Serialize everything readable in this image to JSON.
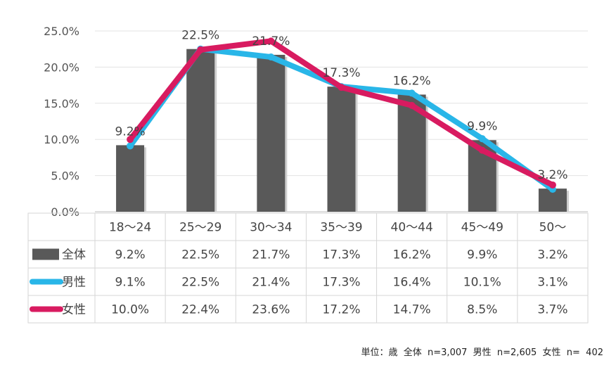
{
  "chart_data": {
    "type": "bar+line",
    "categories": [
      "18～24",
      "25～29",
      "30～34",
      "35～39",
      "40～44",
      "45～49",
      "50～"
    ],
    "y_ticks": [
      "0.0%",
      "5.0%",
      "10.0%",
      "15.0%",
      "20.0%",
      "25.0%"
    ],
    "ylim": [
      0,
      25
    ],
    "series": [
      {
        "name": "全体",
        "kind": "bar",
        "color": "#595959",
        "values": [
          9.2,
          22.5,
          21.7,
          17.3,
          16.2,
          9.9,
          3.2
        ],
        "labels": [
          "9.2%",
          "22.5%",
          "21.7%",
          "17.3%",
          "16.2%",
          "9.9%",
          "3.2%"
        ]
      },
      {
        "name": "男性",
        "kind": "line",
        "color": "#29b6e8",
        "values": [
          9.1,
          22.5,
          21.4,
          17.3,
          16.4,
          10.1,
          3.1
        ],
        "labels": [
          "9.1%",
          "22.5%",
          "21.4%",
          "17.3%",
          "16.4%",
          "10.1%",
          "3.1%"
        ]
      },
      {
        "name": "女性",
        "kind": "line",
        "color": "#d81b60",
        "values": [
          10.0,
          22.4,
          23.6,
          17.2,
          14.7,
          8.5,
          3.7
        ],
        "labels": [
          "10.0%",
          "22.4%",
          "23.6%",
          "17.2%",
          "14.7%",
          "8.5%",
          "3.7%"
        ]
      }
    ],
    "data_labels": [
      "9.2%",
      "22.5%",
      "21.7%",
      "17.3%",
      "16.2%",
      "9.9%",
      "3.2%"
    ]
  },
  "footnote": "単位：歳  全体  n=3,007  男性  n=2,605  女性  n=  402"
}
